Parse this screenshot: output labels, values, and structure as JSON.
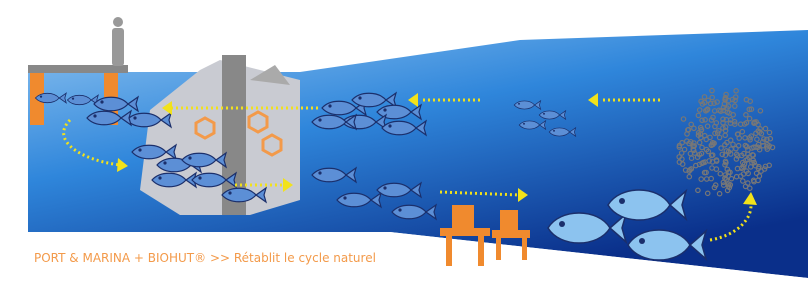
{
  "caption": "PORT & MARINA + BIOHUT® >> Rétablit le cycle naturel"
}
